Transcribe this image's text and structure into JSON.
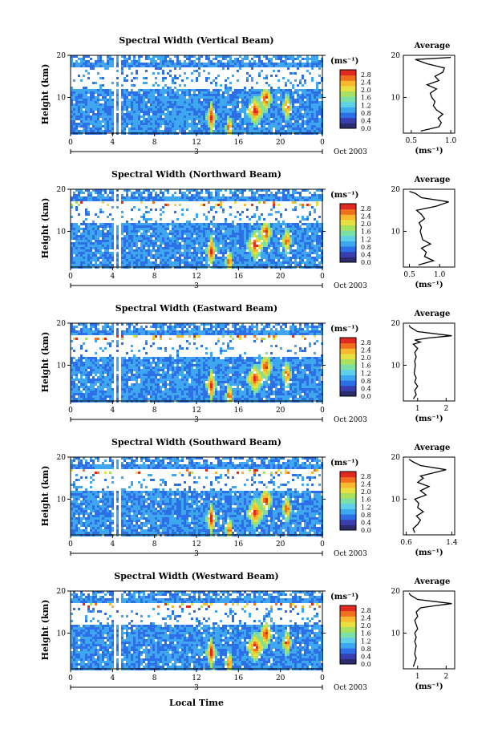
{
  "figure": {
    "xlabel_bottom": "Local Time",
    "date_label": "Oct 2003"
  },
  "colorbar": {
    "unit": "(ms⁻¹)",
    "ticks": [
      "0.0",
      "0.4",
      "0.8",
      "1.2",
      "1.6",
      "2.0",
      "2.4",
      "2.8"
    ],
    "colors": [
      "#2b2b6e",
      "#3a3fb0",
      "#2d6fe6",
      "#3fa6f0",
      "#5fd0e8",
      "#7be0a8",
      "#a8e060",
      "#e8e040",
      "#f8b830",
      "#f07020",
      "#e02a20"
    ]
  },
  "chart_data": [
    {
      "type": "heatmap",
      "title": "Spectral Width (Vertical Beam)",
      "ylabel": "Height (km)",
      "xticks": [
        "0",
        "4",
        "8",
        "12",
        "16",
        "20",
        "0"
      ],
      "day_label": "3",
      "yticks": [
        "20",
        "10"
      ],
      "xlim": [
        0,
        24
      ],
      "ylim": [
        1.5,
        20
      ],
      "value_unit": "ms-1",
      "value_range": [
        0.0,
        3.0
      ],
      "profile": {
        "title": "Average",
        "xlabel": "(ms⁻¹)",
        "xticks": [
          "0.5",
          "1.0"
        ],
        "xlim": [
          0.4,
          1.05
        ],
        "yticks": [
          "20",
          "10"
        ],
        "ylim": [
          1.5,
          20
        ],
        "heights": [
          2,
          3,
          4,
          5,
          6,
          7,
          8,
          9,
          10,
          11,
          12,
          13,
          14,
          15,
          16,
          17,
          18,
          19,
          19.5
        ],
        "values": [
          0.62,
          0.85,
          0.88,
          0.84,
          0.9,
          0.82,
          0.78,
          0.8,
          0.76,
          0.74,
          0.82,
          0.7,
          0.85,
          0.8,
          0.9,
          0.92,
          0.7,
          0.55,
          1.0
        ]
      }
    },
    {
      "type": "heatmap",
      "title": "Spectral Width (Northward Beam)",
      "ylabel": "Height (km)",
      "xticks": [
        "0",
        "4",
        "8",
        "12",
        "16",
        "20",
        "0"
      ],
      "day_label": "3",
      "yticks": [
        "20",
        "10"
      ],
      "xlim": [
        0,
        24
      ],
      "ylim": [
        1.5,
        20
      ],
      "value_unit": "ms-1",
      "value_range": [
        0.0,
        3.0
      ],
      "profile": {
        "title": "Average",
        "xlabel": "(ms⁻¹)",
        "xticks": [
          "0.5",
          "1.0"
        ],
        "xlim": [
          0.4,
          1.25
        ],
        "yticks": [
          "20",
          "10"
        ],
        "ylim": [
          1.5,
          20
        ],
        "heights": [
          2,
          3,
          4,
          5,
          6,
          7,
          8,
          9,
          10,
          11,
          12,
          13,
          14,
          15,
          16,
          17,
          18,
          19,
          19.5
        ],
        "values": [
          0.65,
          0.9,
          0.75,
          0.78,
          0.7,
          0.85,
          0.72,
          0.7,
          0.68,
          0.7,
          0.66,
          0.75,
          0.7,
          0.62,
          0.95,
          1.15,
          0.7,
          0.6,
          0.5
        ]
      }
    },
    {
      "type": "heatmap",
      "title": "Spectral Width (Eastward Beam)",
      "ylabel": "Height (km)",
      "xticks": [
        "0",
        "4",
        "8",
        "12",
        "16",
        "20",
        "0"
      ],
      "day_label": "3",
      "yticks": [
        "20",
        "10"
      ],
      "xlim": [
        0,
        24
      ],
      "ylim": [
        1.5,
        20
      ],
      "value_unit": "ms-1",
      "value_range": [
        0.0,
        3.0
      ],
      "profile": {
        "title": "Average",
        "xlabel": "(ms⁻¹)",
        "xticks": [
          "1",
          "2"
        ],
        "xlim": [
          0.5,
          2.3
        ],
        "yticks": [
          "20",
          "10"
        ],
        "ylim": [
          1.5,
          20
        ],
        "heights": [
          2,
          3,
          4,
          5,
          6,
          7,
          8,
          9,
          10,
          11,
          12,
          13,
          14,
          15,
          15.5,
          16,
          16.5,
          17,
          18,
          19,
          19.5
        ],
        "values": [
          0.85,
          0.95,
          0.9,
          1.0,
          0.9,
          0.95,
          0.88,
          0.9,
          0.92,
          0.9,
          0.95,
          0.9,
          1.0,
          0.85,
          1.1,
          0.9,
          1.4,
          2.2,
          1.0,
          0.75,
          0.7
        ]
      }
    },
    {
      "type": "heatmap",
      "title": "Spectral Width (Southward Beam)",
      "ylabel": "Height (km)",
      "xticks": [
        "0",
        "4",
        "8",
        "12",
        "16",
        "20",
        "0"
      ],
      "day_label": "3",
      "yticks": [
        "20",
        "10"
      ],
      "xlim": [
        0,
        24
      ],
      "ylim": [
        1.5,
        20
      ],
      "value_unit": "ms-1",
      "value_range": [
        0.0,
        3.0
      ],
      "profile": {
        "title": "Average",
        "xlabel": "(ms⁻¹)",
        "xticks": [
          "0.6",
          "1.4"
        ],
        "xlim": [
          0.55,
          1.45
        ],
        "yticks": [
          "20",
          "10"
        ],
        "ylim": [
          1.5,
          20
        ],
        "heights": [
          2,
          3,
          4,
          5,
          6,
          7,
          8,
          9,
          10,
          11,
          12,
          13,
          14,
          15,
          15.5,
          16,
          17,
          18,
          19,
          19.5
        ],
        "values": [
          0.75,
          0.72,
          0.8,
          0.85,
          0.78,
          0.9,
          0.8,
          0.82,
          0.75,
          0.95,
          0.85,
          1.0,
          0.8,
          0.9,
          0.85,
          1.0,
          1.3,
          0.85,
          0.7,
          0.65
        ]
      }
    },
    {
      "type": "heatmap",
      "title": "Spectral Width (Westward Beam)",
      "ylabel": "Height (km)",
      "xticks": [
        "0",
        "4",
        "8",
        "12",
        "16",
        "20",
        "0"
      ],
      "day_label": "3",
      "yticks": [
        "20",
        "10"
      ],
      "xlim": [
        0,
        24
      ],
      "ylim": [
        1.5,
        20
      ],
      "value_unit": "ms-1",
      "value_range": [
        0.0,
        3.0
      ],
      "profile": {
        "title": "Average",
        "xlabel": "(ms⁻¹)",
        "xticks": [
          "1",
          "2"
        ],
        "xlim": [
          0.5,
          2.3
        ],
        "yticks": [
          "20",
          "10"
        ],
        "ylim": [
          1.5,
          20
        ],
        "heights": [
          2,
          3,
          4,
          5,
          6,
          7,
          8,
          9,
          10,
          11,
          12,
          13,
          14,
          15,
          16,
          16.5,
          17,
          18,
          19,
          19.5
        ],
        "values": [
          0.85,
          0.9,
          0.95,
          0.9,
          0.92,
          0.95,
          0.9,
          0.95,
          0.9,
          1.0,
          0.95,
          0.9,
          1.0,
          0.95,
          1.1,
          1.6,
          2.2,
          1.0,
          0.75,
          0.7
        ]
      }
    }
  ]
}
